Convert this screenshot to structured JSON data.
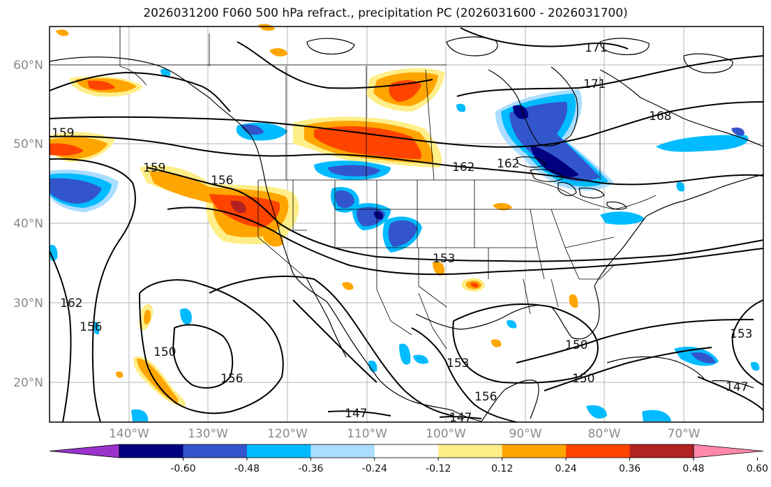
{
  "title": "2026031200 F060 500 hPa refract., precipitation PC (2026031600 - 2026031700)",
  "lat_labels": [
    "60°N",
    "50°N",
    "40°N",
    "30°N",
    "20°N"
  ],
  "lon_labels": [
    "140°W",
    "130°W",
    "120°W",
    "110°W",
    "100°W",
    "90°W",
    "80°W",
    "70°W"
  ],
  "contour_labels": [
    "171",
    "171",
    "168",
    "162",
    "162",
    "159",
    "159",
    "156",
    "153",
    "162",
    "156",
    "150",
    "156",
    "150",
    "150",
    "153",
    "156",
    "147",
    "147",
    "147",
    "153"
  ],
  "colorbar": {
    "ticks": [
      "-0.60",
      "-0.48",
      "-0.36",
      "-0.24",
      "-0.12",
      "0.12",
      "0.24",
      "0.36",
      "0.48",
      "0.60"
    ],
    "colors": [
      "#9933cc",
      "#000080",
      "#3355cc",
      "#00bbff",
      "#aaddff",
      "#ffffff",
      "#ffee88",
      "#ffa500",
      "#ff4400",
      "#b22222",
      "#ff88aa"
    ]
  },
  "colors": {
    "neg_strong": "#000080",
    "neg_mid": "#3355cc",
    "neg_light": "#00bbff",
    "neg_pale": "#aaddff",
    "pos_pale": "#ffee88",
    "pos_mid": "#ffa500",
    "pos_strong": "#ff4400",
    "pos_max": "#b22222"
  }
}
